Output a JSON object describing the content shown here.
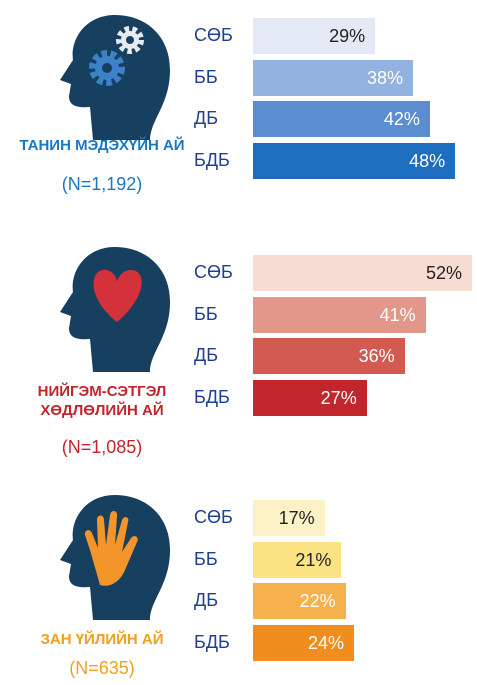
{
  "chart_data": [
    {
      "type": "bar",
      "title": "ТАНИН МЭДЭХҮЙН АЙ",
      "subtitle": "(N=1,192)",
      "categories": [
        "СӨБ",
        "ББ",
        "ДБ",
        "БДБ"
      ],
      "values": [
        29,
        38,
        42,
        48
      ],
      "value_labels": [
        "29%",
        "38%",
        "42%",
        "48%"
      ],
      "colors": [
        "#e3e9f5",
        "#93b2e0",
        "#5a8ed0",
        "#1d6ebe"
      ],
      "title_color": "#1a78c2"
    },
    {
      "type": "bar",
      "title": "НИЙГЭМ-СЭТГЭЛ ХӨДЛӨЛИЙН АЙ",
      "subtitle": "(N=1,085)",
      "categories": [
        "СӨБ",
        "ББ",
        "ДБ",
        "БДБ"
      ],
      "values": [
        52,
        41,
        36,
        27
      ],
      "value_labels": [
        "52%",
        "41%",
        "36%",
        "27%"
      ],
      "colors": [
        "#f7dcd4",
        "#e3978a",
        "#d35a50",
        "#c1262d"
      ],
      "title_color": "#c1262d"
    },
    {
      "type": "bar",
      "title": "ЗАН ҮЙЛИЙН АЙ",
      "subtitle": "(N=635)",
      "categories": [
        "СӨБ",
        "ББ",
        "ДБ",
        "БДБ"
      ],
      "values": [
        17,
        21,
        22,
        24
      ],
      "value_labels": [
        "17%",
        "21%",
        "22%",
        "24%"
      ],
      "colors": [
        "#fdf1c6",
        "#fbe283",
        "#f6b04c",
        "#ef8d1d"
      ],
      "title_color": "#f0a01e"
    }
  ]
}
